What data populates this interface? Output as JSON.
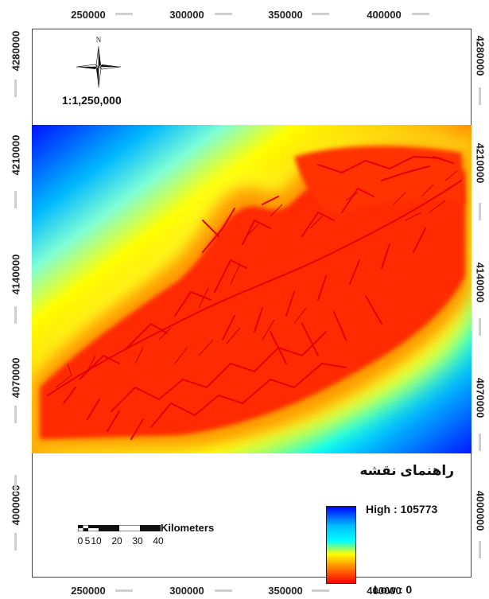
{
  "map": {
    "scale_ratio": "1:1,250,000",
    "north_label": "N",
    "legend": {
      "title": "راهنمای نقشه",
      "high_label": "High : 105773",
      "low_label": "Low : 0",
      "high_value": 105773,
      "low_value": 0,
      "ramp_colors": [
        "#0000ff",
        "#00bfff",
        "#00ffff",
        "#ffff00",
        "#ff8000",
        "#ff0000"
      ]
    },
    "scale_bar": {
      "units": "Kilometers",
      "tick_labels": [
        "0",
        "5",
        "10",
        "20",
        "30",
        "40"
      ]
    },
    "axes": {
      "x_ticks": [
        "250000",
        "300000",
        "350000",
        "400000"
      ],
      "y_ticks": [
        "4280000",
        "4210000",
        "4140000",
        "4070000",
        "4000000"
      ]
    },
    "colors": {
      "background_water_far": "#0000ff",
      "stream_red": "#ff0000",
      "frame": "#444444"
    }
  }
}
